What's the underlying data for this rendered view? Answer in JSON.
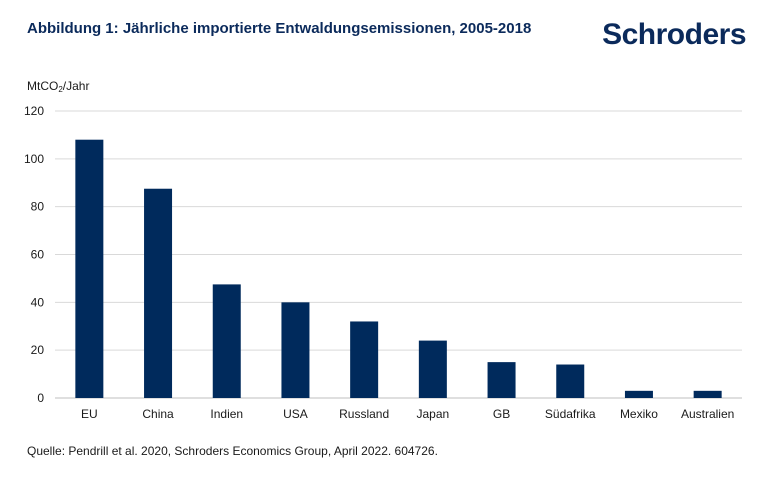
{
  "header": {
    "title": "Abbildung 1: Jährliche importierte Entwaldungsemissionen, 2005-2018",
    "logo": "Schroders"
  },
  "footer": {
    "source": "Quelle: Pendrill et al. 2020, Schroders Economics Group, April 2022. 604726."
  },
  "colors": {
    "bar": "#002a5c",
    "grid": "#d9d9d9",
    "brand": "#0b2a5b"
  },
  "chart_data": {
    "type": "bar",
    "title": "Abbildung 1: Jährliche importierte Entwaldungsemissionen, 2005-2018",
    "ylabel_prefix": "MtCO",
    "ylabel_sub": "2",
    "ylabel_suffix": "/Jahr",
    "categories": [
      "EU",
      "China",
      "Indien",
      "USA",
      "Russland",
      "Japan",
      "GB",
      "Südafrika",
      "Mexiko",
      "Australien"
    ],
    "values": [
      108,
      87.5,
      47.5,
      40,
      32,
      24,
      15,
      14,
      3,
      3
    ],
    "ylim": [
      0,
      120
    ],
    "yticks": [
      0,
      20,
      40,
      60,
      80,
      100,
      120
    ],
    "grid": true,
    "legend": "none"
  }
}
